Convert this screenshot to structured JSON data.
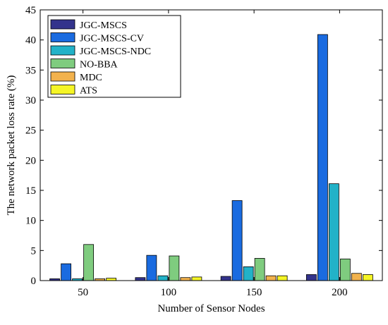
{
  "chart_data": {
    "type": "bar",
    "title": "",
    "xlabel": "Number of Sensor Nodes",
    "ylabel": "The network packet loss rate (%)",
    "categories": [
      "50",
      "100",
      "150",
      "200"
    ],
    "ylim": [
      0,
      45
    ],
    "yticks": [
      "0",
      "5",
      "10",
      "15",
      "20",
      "25",
      "30",
      "35",
      "40",
      "45"
    ],
    "grid": false,
    "legend_position": "top-left",
    "series": [
      {
        "name": "JGC-MSCS",
        "color": "#33338c",
        "values": [
          0.3,
          0.5,
          0.7,
          1.0
        ]
      },
      {
        "name": "JGC-MSCS-CV",
        "color": "#1a6be0",
        "values": [
          2.8,
          4.2,
          13.3,
          40.9
        ]
      },
      {
        "name": "JGC-MSCS-NDC",
        "color": "#22b2c8",
        "values": [
          0.3,
          0.8,
          2.3,
          16.1
        ]
      },
      {
        "name": "NO-BBA",
        "color": "#7fcc7f",
        "values": [
          6.0,
          4.1,
          3.7,
          3.6
        ]
      },
      {
        "name": "MDC",
        "color": "#f2b24d",
        "values": [
          0.3,
          0.5,
          0.8,
          1.2
        ]
      },
      {
        "name": "ATS",
        "color": "#f5f526",
        "values": [
          0.4,
          0.6,
          0.8,
          1.0
        ]
      }
    ]
  }
}
